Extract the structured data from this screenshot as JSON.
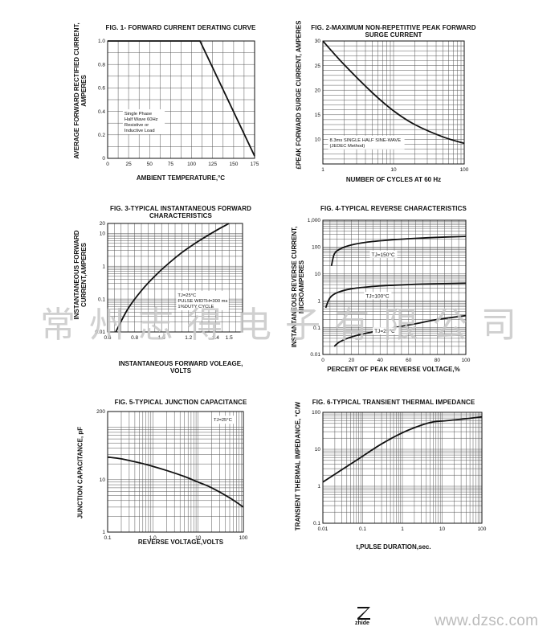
{
  "watermark": "常州志得电子有限公司",
  "footer": {
    "brand": "zhide",
    "url": "www.dzsc.com"
  },
  "chart_data": [
    {
      "id": "fig1",
      "type": "line",
      "title": "FIG. 1- FORWARD CURRENT DERATING CURVE",
      "subtitle": "",
      "xlabel": "AMBIENT TEMPERATURE,°C",
      "ylabel": "AVERAGE FORWARD RECTIFIED CURRENT, AMPERES",
      "xscale": "linear",
      "yscale": "linear",
      "xlim": [
        0,
        175
      ],
      "ylim": [
        0,
        1.0
      ],
      "xticks": [
        0,
        25,
        50,
        75,
        100,
        125,
        150,
        175
      ],
      "xtick_labels": [
        "0",
        "25",
        "50",
        "75",
        "100",
        "125",
        "150",
        "175"
      ],
      "yticks": [
        0,
        0.2,
        0.4,
        0.6,
        0.8,
        1.0
      ],
      "ytick_labels": [
        "0",
        "0.2",
        "0.4",
        "0.6",
        "0.8",
        "1.0"
      ],
      "grid": true,
      "series": [
        {
          "x": [
            0,
            110,
            175
          ],
          "y": [
            1.0,
            1.0,
            0.02
          ]
        }
      ],
      "annotations": [
        {
          "lines": [
            "Single Phase",
            "Half Wave 60Hz",
            "Resistive or",
            "Inductive Load"
          ],
          "x": 20,
          "y": 0.37
        }
      ]
    },
    {
      "id": "fig2",
      "type": "line",
      "title": "FIG. 2-MAXIMUM NON-REPETITIVE PEAK FORWARD",
      "subtitle": "SURGE CURRENT",
      "xlabel": "NUMBER OF CYCLES AT 60 Hz",
      "ylabel": "£PEAK FORWARD SURGE CURRENT, AMPERES",
      "xscale": "log",
      "yscale": "linear",
      "xlim": [
        1,
        100
      ],
      "ylim": [
        5,
        30
      ],
      "xticks": [
        1,
        10,
        100
      ],
      "xtick_labels": [
        "1",
        "10",
        "100"
      ],
      "yticks": [
        10,
        15,
        20,
        25,
        30
      ],
      "ytick_labels": [
        "10",
        "15",
        "20",
        "25",
        "30"
      ],
      "grid": true,
      "series": [
        {
          "x": [
            1,
            2,
            5,
            10,
            20,
            50,
            100
          ],
          "y": [
            30,
            25.2,
            19.5,
            15.8,
            13,
            10.5,
            9.2
          ]
        }
      ],
      "annotations": [
        {
          "lines": [
            "8.3ms SINGLE HALF SINE-WAVE",
            "(JEDEC Method)"
          ],
          "x": 1.25,
          "y": 9.6
        }
      ]
    },
    {
      "id": "fig3",
      "type": "line",
      "title": "FIG. 3-TYPICAL INSTANTANEOUS FORWARD",
      "subtitle": "CHARACTERISTICS",
      "xlabel": "INSTANTANEOUS FORWARD VOLEAGE,",
      "xlabel2": "VOLTS",
      "ylabel": "INSTANTANEOUS FORWARD CURRENT,AMPERES",
      "xscale": "linear",
      "yscale": "log",
      "xlim": [
        0.6,
        1.6
      ],
      "ylim": [
        0.01,
        20
      ],
      "xticks": [
        0.6,
        0.8,
        1.0,
        1.2,
        1.4,
        1.5
      ],
      "xtick_labels": [
        "0.6",
        "0.8",
        "1.0",
        "1.2",
        "1.4",
        "1.5"
      ],
      "yticks": [
        0.01,
        0.1,
        1,
        10,
        20
      ],
      "ytick_labels": [
        "0.01",
        "0.1",
        "1",
        "10",
        "20"
      ],
      "grid": true,
      "series": [
        {
          "x": [
            0.66,
            0.75,
            0.85,
            0.95,
            1.05,
            1.15,
            1.25,
            1.35,
            1.43,
            1.5
          ],
          "y": [
            0.01,
            0.05,
            0.18,
            0.5,
            1.2,
            2.6,
            5,
            9,
            14,
            20
          ]
        }
      ],
      "annotations": [
        {
          "lines": [
            "TJ=25°C",
            "PULSE WIDTH=300 ms",
            "1%DUTY CYCLE"
          ],
          "x": 1.12,
          "y": 0.12
        }
      ]
    },
    {
      "id": "fig4",
      "type": "line",
      "title": "FIG. 4-TYPICAL REVERSE CHARACTERISTICS",
      "subtitle": "",
      "xlabel": "PERCENT OF PEAK REVERSE VOLTAGE,%",
      "ylabel": "INSTANTANEOUS REVERSE CURRENT, MICROAMPERES",
      "xscale": "linear",
      "yscale": "log",
      "xlim": [
        0,
        100
      ],
      "ylim": [
        0.01,
        1000
      ],
      "xticks": [
        0,
        20,
        40,
        60,
        80,
        100
      ],
      "xtick_labels": [
        "0",
        "20",
        "40",
        "60",
        "80",
        "100"
      ],
      "yticks": [
        0.01,
        0.1,
        1,
        10,
        100,
        1000
      ],
      "ytick_labels": [
        "0.01",
        "0.1",
        "1",
        "10",
        "100",
        "1,000"
      ],
      "grid": true,
      "series": [
        {
          "name": "TJ=150°C",
          "x": [
            6,
            8,
            12,
            20,
            30,
            45,
            60,
            80,
            100
          ],
          "y": [
            20,
            55,
            85,
            120,
            150,
            180,
            205,
            230,
            250
          ]
        },
        {
          "name": "TJ=100°C",
          "x": [
            2,
            5,
            10,
            20,
            35,
            50,
            65,
            80,
            100
          ],
          "y": [
            0.55,
            1.3,
            2.0,
            2.8,
            3.4,
            3.8,
            4.1,
            4.3,
            4.5
          ]
        },
        {
          "name": "TJ=25°C",
          "x": [
            8,
            12,
            20,
            35,
            50,
            65,
            80,
            100
          ],
          "y": [
            0.02,
            0.03,
            0.045,
            0.07,
            0.1,
            0.14,
            0.2,
            0.28
          ]
        }
      ],
      "annotations": []
    },
    {
      "id": "fig5",
      "type": "line",
      "title": "FIG. 5-TYPICAL JUNCTION CAPACITANCE",
      "subtitle": "",
      "xlabel": "REVERSE VOLTAGE,VOLTS",
      "ylabel": "JUNCTION CAPACITANCE, pF",
      "xscale": "log",
      "yscale": "log",
      "xlim": [
        0.1,
        100
      ],
      "ylim": [
        1,
        200
      ],
      "xticks": [
        0.1,
        1,
        10,
        100
      ],
      "xtick_labels": [
        "0.1",
        "1.0",
        "10",
        "100"
      ],
      "yticks": [
        1,
        10,
        200
      ],
      "ytick_labels": [
        "1",
        "10",
        "200"
      ],
      "grid": true,
      "series": [
        {
          "x": [
            0.1,
            0.2,
            0.5,
            1,
            2,
            5,
            10,
            20,
            50,
            100
          ],
          "y": [
            27,
            25,
            21,
            18,
            15,
            11.5,
            9,
            7,
            4.5,
            3
          ]
        }
      ],
      "annotations": [
        {
          "lines": [
            "TJ=25°C"
          ],
          "x": 22,
          "y": 130
        }
      ]
    },
    {
      "id": "fig6",
      "type": "line",
      "title": "FIG. 6-TYPICAL TRANSIENT THERMAL IMPEDANCE",
      "subtitle": "",
      "xlabel": "t,PULSE DURATION,sec.",
      "ylabel": "TRANSIENT THERMAL IMPEDANCE, °C/W",
      "xscale": "log",
      "yscale": "log",
      "xlim": [
        0.01,
        100
      ],
      "ylim": [
        0.1,
        100
      ],
      "xticks": [
        0.01,
        0.1,
        1,
        10,
        100
      ],
      "xtick_labels": [
        "0.01",
        "0.1",
        "1",
        "10",
        "100"
      ],
      "yticks": [
        0.1,
        1,
        10,
        100
      ],
      "ytick_labels": [
        "0.1",
        "1",
        "10",
        "100"
      ],
      "grid": true,
      "series": [
        {
          "x": [
            0.01,
            0.03,
            0.1,
            0.3,
            1,
            3,
            6,
            10,
            30,
            100
          ],
          "y": [
            1.3,
            2.8,
            6.5,
            14,
            28,
            45,
            55,
            58,
            65,
            75
          ]
        }
      ],
      "annotations": []
    }
  ]
}
